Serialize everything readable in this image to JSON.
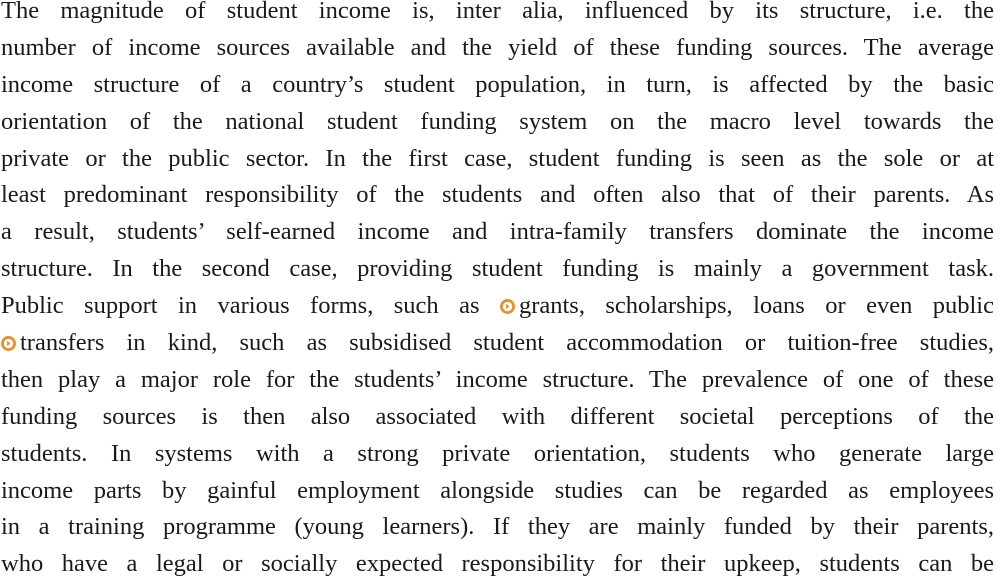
{
  "paragraph": {
    "lines": [
      [
        "The magnitude of student income is, inter alia, influenced by its structure, i.e. the"
      ],
      [
        "number of income sources available and the yield of these funding sources. The average"
      ],
      [
        "income structure of a country’s student population, in turn, is affected by the basic"
      ],
      [
        "orientation of the national student funding system on the macro level towards the"
      ],
      [
        "private or the public sector. In the first case, student funding is seen as the sole or at"
      ],
      [
        "least predominant responsibility of the students and often also that of their parents. As"
      ],
      [
        "a result, students’ self-earned income and intra-family transfers dominate the income"
      ],
      [
        "structure. In the second case, providing student funding is mainly a government task."
      ],
      [
        "Public support in various forms, such as",
        "grants, scholarships, loans or even public"
      ],
      [
        "transfers in kind, such as subsidised student accommodation or tuition-free studies,"
      ],
      [
        "then play a major role for the students’ income structure. The prevalence of one of these"
      ],
      [
        "funding sources is then also associated with different societal perceptions of the"
      ],
      [
        "students. In systems with a strong private orientation, students who generate large"
      ],
      [
        "income parts by gainful employment alongside studies can be regarded as employees"
      ],
      [
        "in a training programme (young learners). If they are mainly funded by their parents,"
      ],
      [
        "who have a legal or socially expected responsibility for their upkeep, students can be"
      ]
    ]
  }
}
